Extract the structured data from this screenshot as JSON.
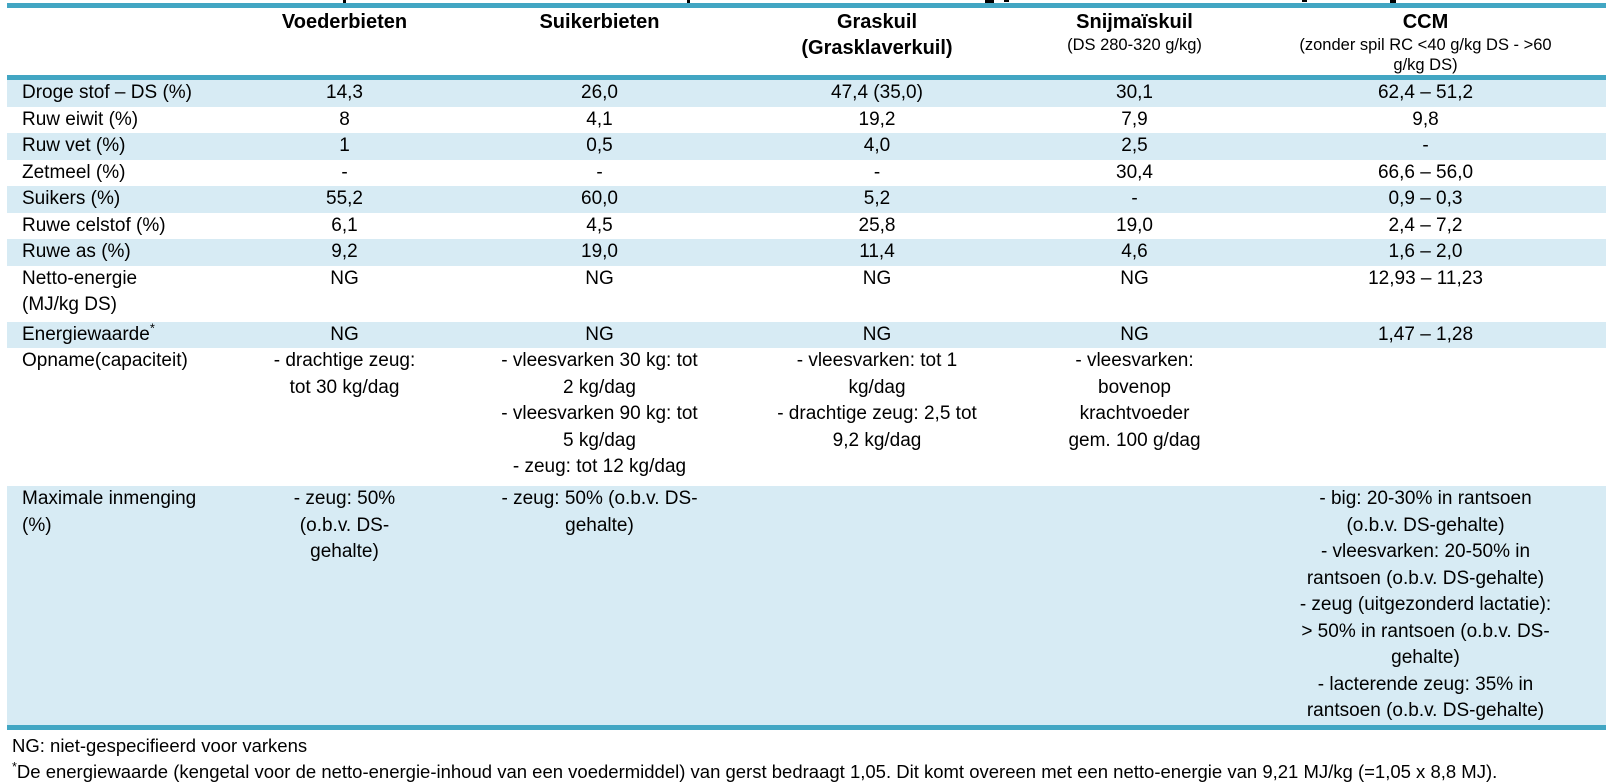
{
  "colors": {
    "accent_teal": "#42A6C3",
    "row_band_blue": "#D7EBF4",
    "text": "#000000"
  },
  "table": {
    "header": {
      "columns": [
        {
          "title": "",
          "subtitle": ""
        },
        {
          "title": "Voederbieten",
          "subtitle": ""
        },
        {
          "title": "Suikerbieten",
          "subtitle": ""
        },
        {
          "title": "Graskuil\n(Grasklaverkuil)",
          "subtitle": ""
        },
        {
          "title": "Snijmaïskuil",
          "subtitle": "(DS 280-320 g/kg)"
        },
        {
          "title": "CCM",
          "subtitle": "(zonder spil RC <40 g/kg DS - >60\ng/kg DS)"
        }
      ]
    },
    "rows": [
      {
        "label": "Droge stof – DS (%)",
        "label_sup": "",
        "shaded": true,
        "cells": [
          "14,3",
          "26,0",
          "47,4 (35,0)",
          "30,1",
          "62,4 – 51,2"
        ]
      },
      {
        "label": "Ruw eiwit (%)",
        "label_sup": "",
        "shaded": false,
        "cells": [
          "8",
          "4,1",
          "19,2",
          "7,9",
          "9,8"
        ]
      },
      {
        "label": "Ruw vet (%)",
        "label_sup": "",
        "shaded": true,
        "cells": [
          "1",
          "0,5",
          "4,0",
          "2,5",
          "-"
        ]
      },
      {
        "label": "Zetmeel (%)",
        "label_sup": "",
        "shaded": false,
        "cells": [
          "-",
          "-",
          "-",
          "30,4",
          "66,6 – 56,0"
        ]
      },
      {
        "label": "Suikers (%)",
        "label_sup": "",
        "shaded": true,
        "cells": [
          "55,2",
          "60,0",
          "5,2",
          "-",
          "0,9 – 0,3"
        ]
      },
      {
        "label": "Ruwe celstof (%)",
        "label_sup": "",
        "shaded": false,
        "cells": [
          "6,1",
          "4,5",
          "25,8",
          "19,0",
          "2,4 – 7,2"
        ]
      },
      {
        "label": "Ruwe as (%)",
        "label_sup": "",
        "shaded": true,
        "cells": [
          "9,2",
          "19,0",
          "11,4",
          "4,6",
          "1,6 – 2,0"
        ]
      },
      {
        "label": "Netto-energie\n(MJ/kg DS)",
        "label_sup": "",
        "shaded": false,
        "cells": [
          "NG",
          "NG",
          "NG",
          "NG",
          "12,93 – 11,23"
        ]
      },
      {
        "label": "Energiewaarde",
        "label_sup": "*",
        "shaded": true,
        "cells": [
          "NG",
          "NG",
          "NG",
          "NG",
          "1,47 – 1,28"
        ]
      },
      {
        "label": "Opname(capaciteit)",
        "label_sup": "",
        "shaded": false,
        "cells": [
          "- drachtige zeug:\ntot 30 kg/dag",
          "- vleesvarken 30 kg: tot\n2 kg/dag\n- vleesvarken 90 kg: tot\n5 kg/dag\n- zeug: tot 12 kg/dag",
          "- vleesvarken: tot 1\nkg/dag\n- drachtige zeug: 2,5 tot\n9,2 kg/dag",
          "- vleesvarken:\nbovenop\nkrachtvoeder\ngem. 100 g/dag",
          ""
        ]
      },
      {
        "label": "Maximale inmenging\n(%)",
        "label_sup": "",
        "shaded": true,
        "cells": [
          "- zeug: 50%\n(o.b.v. DS-\ngehalte)",
          "- zeug: 50% (o.b.v. DS-\ngehalte)",
          "",
          "",
          "- big: 20-30% in rantsoen\n(o.b.v. DS-gehalte)\n- vleesvarken: 20-50% in\nrantsoen (o.b.v. DS-gehalte)\n- zeug (uitgezonderd lactatie):\n> 50% in rantsoen (o.b.v. DS-\ngehalte)\n- lacterende zeug: 35% in\nrantsoen (o.b.v. DS-gehalte)"
        ]
      }
    ]
  },
  "footnotes": {
    "ng": "NG: niet-gespecifieerd voor varkens",
    "energy_sup": "*",
    "energy": "De energiewaarde (kengetal voor de netto-energie-inhoud van een voedermiddel) van gerst bedraagt 1,05. Dit komt overeen met een netto-energie van 9,21 MJ/kg (=1,05 x 8,8 MJ)."
  }
}
